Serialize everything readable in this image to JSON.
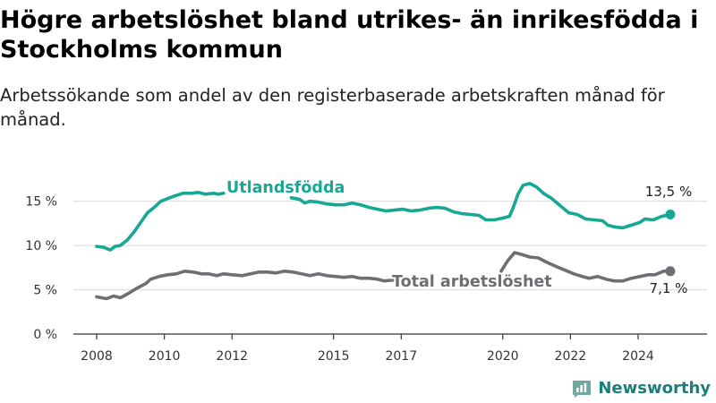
{
  "title": "Högre arbetslöshet bland utrikes- än inrikesfödda i Stockholms kommun",
  "subtitle": "Arbetssökande som andel av den registerbaserade arbetskraften månad för månad.",
  "brand": {
    "name": "Newsworthy",
    "logo_icon": "bar-chart-logo-icon"
  },
  "colors": {
    "utlandsfodda": "#16a895",
    "total": "#6e6e73",
    "grid": "#d9d9d9",
    "axis": "#333333"
  },
  "chart_data": {
    "type": "line",
    "xlim": [
      2007.5,
      2025.6
    ],
    "ylim": [
      0,
      17.5
    ],
    "y_ticks": [
      {
        "value": 0,
        "label": "0 %"
      },
      {
        "value": 5,
        "label": "5 %"
      },
      {
        "value": 10,
        "label": "10 %"
      },
      {
        "value": 15,
        "label": "15 %"
      }
    ],
    "x_ticks": [
      {
        "value": 2008,
        "label": "2008"
      },
      {
        "value": 2010,
        "label": "2010"
      },
      {
        "value": 2012,
        "label": "2012"
      },
      {
        "value": 2015,
        "label": "2015"
      },
      {
        "value": 2017,
        "label": "2017"
      },
      {
        "value": 2020,
        "label": "2020"
      },
      {
        "value": 2022,
        "label": "2022"
      },
      {
        "value": 2024,
        "label": "2024"
      }
    ],
    "series": [
      {
        "name": "Utlandsfödda",
        "key": "utlandsfodda",
        "points": [
          [
            2008.0,
            9.9
          ],
          [
            2008.2,
            9.8
          ],
          [
            2008.4,
            9.5
          ],
          [
            2008.55,
            9.9
          ],
          [
            2008.7,
            10.0
          ],
          [
            2008.9,
            10.6
          ],
          [
            2009.1,
            11.5
          ],
          [
            2009.3,
            12.6
          ],
          [
            2009.5,
            13.7
          ],
          [
            2009.7,
            14.3
          ],
          [
            2009.9,
            15.0
          ],
          [
            2010.1,
            15.3
          ],
          [
            2010.3,
            15.6
          ],
          [
            2010.55,
            15.9
          ],
          [
            2010.8,
            15.9
          ],
          [
            2011.0,
            16.0
          ],
          [
            2011.2,
            15.8
          ],
          [
            2011.45,
            15.9
          ],
          [
            2011.6,
            15.8
          ],
          [
            2011.75,
            15.9
          ],
          [
            2013.75,
            15.4
          ],
          [
            2014.0,
            15.2
          ],
          [
            2014.15,
            14.8
          ],
          [
            2014.3,
            15.0
          ],
          [
            2014.55,
            14.9
          ],
          [
            2014.8,
            14.7
          ],
          [
            2015.05,
            14.6
          ],
          [
            2015.3,
            14.6
          ],
          [
            2015.55,
            14.8
          ],
          [
            2015.8,
            14.6
          ],
          [
            2016.05,
            14.3
          ],
          [
            2016.3,
            14.1
          ],
          [
            2016.55,
            13.9
          ],
          [
            2016.8,
            14.0
          ],
          [
            2017.05,
            14.1
          ],
          [
            2017.3,
            13.9
          ],
          [
            2017.55,
            14.0
          ],
          [
            2017.8,
            14.2
          ],
          [
            2018.05,
            14.3
          ],
          [
            2018.3,
            14.2
          ],
          [
            2018.55,
            13.8
          ],
          [
            2018.8,
            13.6
          ],
          [
            2019.05,
            13.5
          ],
          [
            2019.3,
            13.4
          ],
          [
            2019.5,
            12.9
          ],
          [
            2019.75,
            12.9
          ],
          [
            2020.0,
            13.1
          ],
          [
            2020.2,
            13.3
          ],
          [
            2020.3,
            14.2
          ],
          [
            2020.45,
            15.8
          ],
          [
            2020.6,
            16.8
          ],
          [
            2020.8,
            17.0
          ],
          [
            2021.0,
            16.6
          ],
          [
            2021.2,
            15.9
          ],
          [
            2021.45,
            15.3
          ],
          [
            2021.7,
            14.5
          ],
          [
            2021.95,
            13.7
          ],
          [
            2022.2,
            13.5
          ],
          [
            2022.45,
            13.0
          ],
          [
            2022.7,
            12.9
          ],
          [
            2022.95,
            12.8
          ],
          [
            2023.1,
            12.3
          ],
          [
            2023.3,
            12.1
          ],
          [
            2023.55,
            12.0
          ],
          [
            2023.8,
            12.3
          ],
          [
            2024.05,
            12.6
          ],
          [
            2024.2,
            13.0
          ],
          [
            2024.45,
            12.9
          ],
          [
            2024.7,
            13.3
          ],
          [
            2024.95,
            13.5
          ]
        ]
      },
      {
        "name": "Total arbetslöshet",
        "key": "total",
        "points": [
          [
            2008.0,
            4.2
          ],
          [
            2008.3,
            4.0
          ],
          [
            2008.5,
            4.3
          ],
          [
            2008.7,
            4.1
          ],
          [
            2008.9,
            4.5
          ],
          [
            2009.2,
            5.2
          ],
          [
            2009.45,
            5.7
          ],
          [
            2009.6,
            6.2
          ],
          [
            2009.85,
            6.5
          ],
          [
            2010.1,
            6.7
          ],
          [
            2010.35,
            6.8
          ],
          [
            2010.6,
            7.1
          ],
          [
            2010.85,
            7.0
          ],
          [
            2011.1,
            6.8
          ],
          [
            2011.3,
            6.8
          ],
          [
            2011.55,
            6.6
          ],
          [
            2011.75,
            6.8
          ],
          [
            2012.0,
            6.7
          ],
          [
            2012.3,
            6.6
          ],
          [
            2012.55,
            6.8
          ],
          [
            2012.8,
            7.0
          ],
          [
            2013.05,
            7.0
          ],
          [
            2013.3,
            6.9
          ],
          [
            2013.55,
            7.1
          ],
          [
            2013.8,
            7.0
          ],
          [
            2014.05,
            6.8
          ],
          [
            2014.3,
            6.6
          ],
          [
            2014.55,
            6.8
          ],
          [
            2014.8,
            6.6
          ],
          [
            2015.05,
            6.5
          ],
          [
            2015.3,
            6.4
          ],
          [
            2015.55,
            6.5
          ],
          [
            2015.8,
            6.3
          ],
          [
            2016.05,
            6.3
          ],
          [
            2016.3,
            6.2
          ],
          [
            2016.5,
            6.0
          ],
          [
            2016.75,
            6.1
          ],
          [
            2019.95,
            7.1
          ],
          [
            2020.15,
            8.3
          ],
          [
            2020.35,
            9.2
          ],
          [
            2020.55,
            9.0
          ],
          [
            2020.8,
            8.7
          ],
          [
            2021.05,
            8.6
          ],
          [
            2021.3,
            8.1
          ],
          [
            2021.6,
            7.6
          ],
          [
            2021.85,
            7.2
          ],
          [
            2022.1,
            6.8
          ],
          [
            2022.35,
            6.5
          ],
          [
            2022.55,
            6.3
          ],
          [
            2022.8,
            6.5
          ],
          [
            2023.05,
            6.2
          ],
          [
            2023.3,
            6.0
          ],
          [
            2023.55,
            6.0
          ],
          [
            2023.8,
            6.3
          ],
          [
            2024.05,
            6.5
          ],
          [
            2024.3,
            6.7
          ],
          [
            2024.5,
            6.7
          ],
          [
            2024.75,
            7.1
          ],
          [
            2024.95,
            7.1
          ]
        ]
      }
    ],
    "series_labels": [
      {
        "series": "utlandsfodda",
        "text": "Utlandsfödda"
      },
      {
        "series": "total",
        "text": "Total arbetslöshet"
      }
    ],
    "end_labels": [
      {
        "series": "utlandsfodda",
        "text": "13,5 %"
      },
      {
        "series": "total",
        "text": "7,1 %"
      }
    ]
  }
}
